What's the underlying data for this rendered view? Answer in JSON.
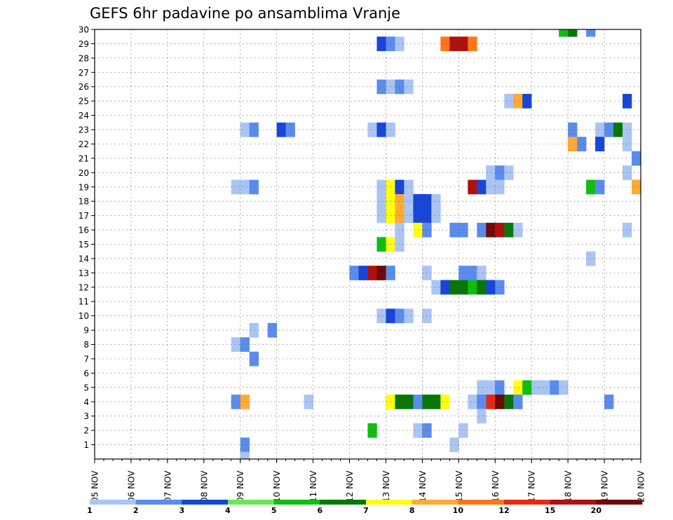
{
  "chart_data": {
    "type": "heatmap",
    "title": "GEFS 6hr padavine po ansamblima Vranje",
    "x_labels": [
      "05 NOV",
      "06 NOV",
      "07 NOV",
      "08 NOV",
      "09 NOV",
      "10 NOV",
      "11 NOV",
      "12 NOV",
      "13 NOV",
      "14 NOV",
      "15 NOV",
      "16 NOV",
      "17 NOV",
      "18 NOV",
      "19 NOV",
      "20 NOV"
    ],
    "y_labels": [
      "1",
      "2",
      "3",
      "4",
      "5",
      "6",
      "7",
      "8",
      "9",
      "10",
      "11",
      "12",
      "13",
      "14",
      "15",
      "16",
      "17",
      "18",
      "19",
      "20",
      "21",
      "22",
      "23",
      "24",
      "25",
      "26",
      "27",
      "28",
      "29",
      "30"
    ],
    "xlim": [
      "05 NOV",
      "20 NOV"
    ],
    "ylim": [
      0,
      30
    ],
    "x_step_hours": 6,
    "grid": true,
    "legend": {
      "placement": "bottom",
      "labels": [
        "1",
        "2",
        "3",
        "4",
        "5",
        "6",
        "7",
        "8",
        "10",
        "12",
        "15",
        "20"
      ],
      "colors": [
        "#aac4f4",
        "#5a8cee",
        "#1746d8",
        "#6ae84e",
        "#0fbe10",
        "#077707",
        "#ffff10",
        "#ffaa34",
        "#ff7518",
        "#e42a14",
        "#b01010",
        "#700808"
      ]
    },
    "cells": [
      {
        "member": 30,
        "time": "17 NOV 18",
        "value": 5
      },
      {
        "member": 30,
        "time": "18 NOV 00",
        "value": 6
      },
      {
        "member": 30,
        "time": "18 NOV 12",
        "value": 2
      },
      {
        "member": 29,
        "time": "12 NOV 18",
        "value": 3
      },
      {
        "member": 29,
        "time": "13 NOV 00",
        "value": 2
      },
      {
        "member": 29,
        "time": "13 NOV 06",
        "value": 1
      },
      {
        "member": 29,
        "time": "14 NOV 12",
        "value": 10
      },
      {
        "member": 29,
        "time": "14 NOV 18",
        "value": 15
      },
      {
        "member": 29,
        "time": "15 NOV 00",
        "value": 15
      },
      {
        "member": 29,
        "time": "15 NOV 06",
        "value": 10
      },
      {
        "member": 26,
        "time": "12 NOV 18",
        "value": 2
      },
      {
        "member": 26,
        "time": "13 NOV 00",
        "value": 1
      },
      {
        "member": 26,
        "time": "13 NOV 06",
        "value": 2
      },
      {
        "member": 26,
        "time": "13 NOV 12",
        "value": 1
      },
      {
        "member": 25,
        "time": "16 NOV 06",
        "value": 1
      },
      {
        "member": 25,
        "time": "16 NOV 12",
        "value": 8
      },
      {
        "member": 25,
        "time": "16 NOV 18",
        "value": 3
      },
      {
        "member": 25,
        "time": "19 NOV 12",
        "value": 3
      },
      {
        "member": 23,
        "time": "09 NOV 00",
        "value": 1
      },
      {
        "member": 23,
        "time": "09 NOV 06",
        "value": 2
      },
      {
        "member": 23,
        "time": "10 NOV 00",
        "value": 3
      },
      {
        "member": 23,
        "time": "10 NOV 06",
        "value": 2
      },
      {
        "member": 23,
        "time": "12 NOV 12",
        "value": 1
      },
      {
        "member": 23,
        "time": "12 NOV 18",
        "value": 3
      },
      {
        "member": 23,
        "time": "13 NOV 00",
        "value": 1
      },
      {
        "member": 23,
        "time": "18 NOV 00",
        "value": 2
      },
      {
        "member": 23,
        "time": "18 NOV 18",
        "value": 1
      },
      {
        "member": 23,
        "time": "19 NOV 00",
        "value": 2
      },
      {
        "member": 23,
        "time": "19 NOV 06",
        "value": 6
      },
      {
        "member": 23,
        "time": "19 NOV 12",
        "value": 1
      },
      {
        "member": 22,
        "time": "18 NOV 00",
        "value": 8
      },
      {
        "member": 22,
        "time": "18 NOV 06",
        "value": 2
      },
      {
        "member": 22,
        "time": "18 NOV 18",
        "value": 3
      },
      {
        "member": 22,
        "time": "19 NOV 12",
        "value": 1
      },
      {
        "member": 21,
        "time": "19 NOV 18",
        "value": 2
      },
      {
        "member": 20,
        "time": "15 NOV 18",
        "value": 1
      },
      {
        "member": 20,
        "time": "16 NOV 00",
        "value": 2
      },
      {
        "member": 20,
        "time": "16 NOV 06",
        "value": 1
      },
      {
        "member": 20,
        "time": "19 NOV 12",
        "value": 1
      },
      {
        "member": 19,
        "time": "08 NOV 18",
        "value": 1
      },
      {
        "member": 19,
        "time": "09 NOV 00",
        "value": 1
      },
      {
        "member": 19,
        "time": "09 NOV 06",
        "value": 2
      },
      {
        "member": 19,
        "time": "12 NOV 18",
        "value": 1
      },
      {
        "member": 19,
        "time": "13 NOV 00",
        "value": 7
      },
      {
        "member": 19,
        "time": "13 NOV 06",
        "value": 3
      },
      {
        "member": 19,
        "time": "13 NOV 12",
        "value": 1
      },
      {
        "member": 19,
        "time": "15 NOV 06",
        "value": 15
      },
      {
        "member": 19,
        "time": "15 NOV 12",
        "value": 3
      },
      {
        "member": 19,
        "time": "15 NOV 18",
        "value": 1
      },
      {
        "member": 19,
        "time": "16 NOV 00",
        "value": 1
      },
      {
        "member": 19,
        "time": "18 NOV 12",
        "value": 5
      },
      {
        "member": 19,
        "time": "18 NOV 18",
        "value": 2
      },
      {
        "member": 19,
        "time": "19 NOV 18",
        "value": 8
      },
      {
        "member": 18,
        "time": "12 NOV 18",
        "value": 1
      },
      {
        "member": 18,
        "time": "13 NOV 00",
        "value": 7
      },
      {
        "member": 18,
        "time": "13 NOV 06",
        "value": 8
      },
      {
        "member": 18,
        "time": "13 NOV 12",
        "value": 1
      },
      {
        "member": 18,
        "time": "13 NOV 18",
        "value": 3
      },
      {
        "member": 18,
        "time": "14 NOV 00",
        "value": 3
      },
      {
        "member": 18,
        "time": "14 NOV 06",
        "value": 1
      },
      {
        "member": 17,
        "time": "12 NOV 18",
        "value": 1
      },
      {
        "member": 17,
        "time": "13 NOV 00",
        "value": 7
      },
      {
        "member": 17,
        "time": "13 NOV 06",
        "value": 8
      },
      {
        "member": 17,
        "time": "13 NOV 12",
        "value": 1
      },
      {
        "member": 17,
        "time": "13 NOV 18",
        "value": 3
      },
      {
        "member": 17,
        "time": "14 NOV 00",
        "value": 3
      },
      {
        "member": 17,
        "time": "14 NOV 06",
        "value": 1
      },
      {
        "member": 16,
        "time": "13 NOV 06",
        "value": 1
      },
      {
        "member": 16,
        "time": "13 NOV 18",
        "value": 7
      },
      {
        "member": 16,
        "time": "14 NOV 00",
        "value": 2
      },
      {
        "member": 16,
        "time": "14 NOV 18",
        "value": 2
      },
      {
        "member": 16,
        "time": "15 NOV 00",
        "value": 2
      },
      {
        "member": 16,
        "time": "15 NOV 12",
        "value": 2
      },
      {
        "member": 16,
        "time": "15 NOV 18",
        "value": 20
      },
      {
        "member": 16,
        "time": "16 NOV 00",
        "value": 15
      },
      {
        "member": 16,
        "time": "16 NOV 06",
        "value": 6
      },
      {
        "member": 16,
        "time": "16 NOV 12",
        "value": 1
      },
      {
        "member": 16,
        "time": "19 NOV 12",
        "value": 1
      },
      {
        "member": 15,
        "time": "12 NOV 18",
        "value": 5
      },
      {
        "member": 15,
        "time": "13 NOV 00",
        "value": 7
      },
      {
        "member": 15,
        "time": "13 NOV 06",
        "value": 1
      },
      {
        "member": 14,
        "time": "18 NOV 12",
        "value": 1
      },
      {
        "member": 13,
        "time": "12 NOV 00",
        "value": 2
      },
      {
        "member": 13,
        "time": "12 NOV 06",
        "value": 3
      },
      {
        "member": 13,
        "time": "12 NOV 12",
        "value": 15
      },
      {
        "member": 13,
        "time": "12 NOV 18",
        "value": 20
      },
      {
        "member": 13,
        "time": "13 NOV 00",
        "value": 2
      },
      {
        "member": 13,
        "time": "14 NOV 00",
        "value": 1
      },
      {
        "member": 13,
        "time": "15 NOV 00",
        "value": 2
      },
      {
        "member": 13,
        "time": "15 NOV 06",
        "value": 2
      },
      {
        "member": 13,
        "time": "15 NOV 12",
        "value": 1
      },
      {
        "member": 12,
        "time": "14 NOV 06",
        "value": 1
      },
      {
        "member": 12,
        "time": "14 NOV 12",
        "value": 3
      },
      {
        "member": 12,
        "time": "14 NOV 18",
        "value": 6
      },
      {
        "member": 12,
        "time": "15 NOV 00",
        "value": 6
      },
      {
        "member": 12,
        "time": "15 NOV 06",
        "value": 5
      },
      {
        "member": 12,
        "time": "15 NOV 12",
        "value": 6
      },
      {
        "member": 12,
        "time": "15 NOV 18",
        "value": 3
      },
      {
        "member": 12,
        "time": "16 NOV 00",
        "value": 2
      },
      {
        "member": 10,
        "time": "12 NOV 18",
        "value": 1
      },
      {
        "member": 10,
        "time": "13 NOV 00",
        "value": 3
      },
      {
        "member": 10,
        "time": "13 NOV 06",
        "value": 2
      },
      {
        "member": 10,
        "time": "13 NOV 12",
        "value": 1
      },
      {
        "member": 10,
        "time": "14 NOV 00",
        "value": 1
      },
      {
        "member": 9,
        "time": "09 NOV 06",
        "value": 1
      },
      {
        "member": 9,
        "time": "09 NOV 18",
        "value": 2
      },
      {
        "member": 8,
        "time": "08 NOV 18",
        "value": 1
      },
      {
        "member": 8,
        "time": "09 NOV 00",
        "value": 2
      },
      {
        "member": 7,
        "time": "09 NOV 06",
        "value": 2
      },
      {
        "member": 5,
        "time": "15 NOV 12",
        "value": 1
      },
      {
        "member": 5,
        "time": "15 NOV 18",
        "value": 1
      },
      {
        "member": 5,
        "time": "16 NOV 00",
        "value": 2
      },
      {
        "member": 5,
        "time": "16 NOV 12",
        "value": 7
      },
      {
        "member": 5,
        "time": "16 NOV 18",
        "value": 5
      },
      {
        "member": 5,
        "time": "17 NOV 00",
        "value": 1
      },
      {
        "member": 5,
        "time": "17 NOV 06",
        "value": 1
      },
      {
        "member": 5,
        "time": "17 NOV 12",
        "value": 2
      },
      {
        "member": 5,
        "time": "17 NOV 18",
        "value": 1
      },
      {
        "member": 4,
        "time": "08 NOV 18",
        "value": 2
      },
      {
        "member": 4,
        "time": "09 NOV 00",
        "value": 8
      },
      {
        "member": 4,
        "time": "10 NOV 18",
        "value": 1
      },
      {
        "member": 4,
        "time": "13 NOV 00",
        "value": 7
      },
      {
        "member": 4,
        "time": "13 NOV 06",
        "value": 6
      },
      {
        "member": 4,
        "time": "13 NOV 12",
        "value": 6
      },
      {
        "member": 4,
        "time": "13 NOV 18",
        "value": 2
      },
      {
        "member": 4,
        "time": "14 NOV 00",
        "value": 6
      },
      {
        "member": 4,
        "time": "14 NOV 06",
        "value": 6
      },
      {
        "member": 4,
        "time": "14 NOV 12",
        "value": 7
      },
      {
        "member": 4,
        "time": "15 NOV 06",
        "value": 1
      },
      {
        "member": 4,
        "time": "15 NOV 12",
        "value": 2
      },
      {
        "member": 4,
        "time": "15 NOV 18",
        "value": 12
      },
      {
        "member": 4,
        "time": "16 NOV 00",
        "value": 20
      },
      {
        "member": 4,
        "time": "16 NOV 06",
        "value": 6
      },
      {
        "member": 4,
        "time": "16 NOV 12",
        "value": 2
      },
      {
        "member": 4,
        "time": "19 NOV 00",
        "value": 2
      },
      {
        "member": 3,
        "time": "15 NOV 12",
        "value": 1
      },
      {
        "member": 2,
        "time": "12 NOV 12",
        "value": 5
      },
      {
        "member": 2,
        "time": "13 NOV 18",
        "value": 1
      },
      {
        "member": 2,
        "time": "14 NOV 00",
        "value": 2
      },
      {
        "member": 2,
        "time": "15 NOV 00",
        "value": 1
      },
      {
        "member": 1,
        "time": "09 NOV 00",
        "value": 2
      },
      {
        "member": 1,
        "time": "14 NOV 18",
        "value": 1
      },
      {
        "member": 0,
        "time": "09 NOV 00",
        "value": 1
      }
    ]
  }
}
